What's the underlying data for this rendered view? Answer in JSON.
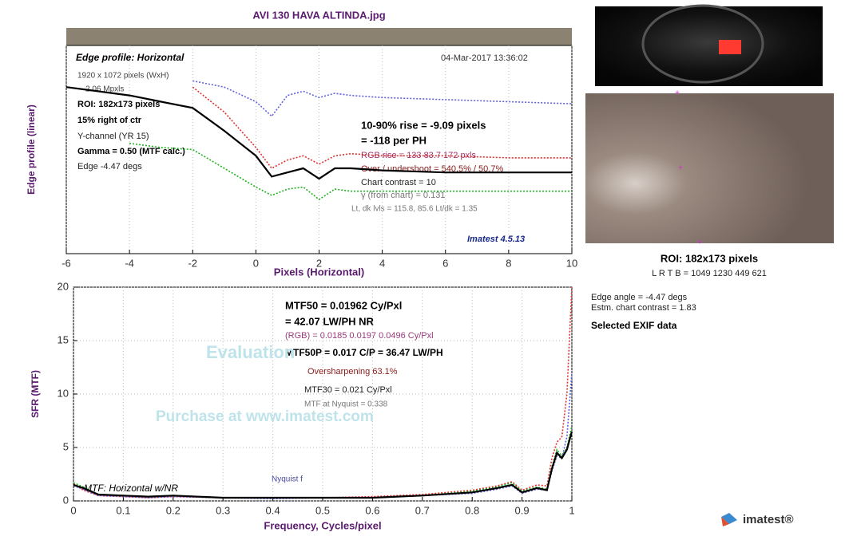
{
  "chart_data": [
    {
      "type": "line",
      "title": "AVI 130 HAVA ALTINDA.jpg",
      "x_label": "Pixels (Horizontal)",
      "y_label": "Edge profile (linear)",
      "x": [
        -6,
        -5,
        -4,
        -3,
        -2,
        -1,
        0,
        0.5,
        1,
        1.5,
        2,
        2.5,
        3,
        4,
        6,
        8,
        10
      ],
      "xlim": [
        -6,
        10
      ],
      "xticks": [
        -6,
        -4,
        -2,
        0,
        2,
        4,
        6,
        8,
        10
      ],
      "ylim": [
        0,
        1
      ],
      "grid": true,
      "series": [
        {
          "color": "#e03030",
          "style": "dotted",
          "values": [
            null,
            null,
            null,
            null,
            0.8,
            0.68,
            0.51,
            0.41,
            0.45,
            0.47,
            0.43,
            0.47,
            0.48,
            0.47,
            0.47,
            0.46,
            0.46
          ]
        },
        {
          "color": "#20b020",
          "style": "dotted",
          "values": [
            null,
            null,
            0.53,
            0.51,
            0.5,
            0.41,
            0.32,
            0.28,
            0.31,
            0.32,
            0.26,
            0.31,
            0.3,
            0.3,
            0.3,
            0.3,
            0.3
          ]
        },
        {
          "color": "#6060e0",
          "style": "dotted",
          "values": [
            null,
            null,
            null,
            null,
            0.83,
            0.8,
            0.73,
            0.66,
            0.76,
            0.78,
            0.75,
            0.77,
            0.76,
            0.75,
            0.74,
            0.73,
            0.72
          ]
        },
        {
          "color": "#000000",
          "style": "solid",
          "values": [
            0.8,
            0.78,
            0.76,
            0.73,
            0.7,
            0.59,
            0.47,
            0.37,
            0.39,
            0.41,
            0.36,
            0.41,
            0.41,
            0.4,
            0.39,
            0.39,
            0.39
          ]
        }
      ],
      "annotations": [
        {
          "text": "Edge profile: Horizontal",
          "color": "#000000"
        },
        {
          "text": "04-Mar-2017 13:36:02",
          "color": "#333333"
        },
        {
          "text": "1920 x 1072 pixels (WxH)",
          "color": "#444444"
        },
        {
          "text": "2.06 Mpxls",
          "color": "#444444"
        },
        {
          "text": "ROI:  182x173 pixels",
          "color": "#000000"
        },
        {
          "text": "15% right of ctr",
          "color": "#000000"
        },
        {
          "text": "Y-channel  (YR 15)",
          "color": "#222222"
        },
        {
          "text": "Gamma = 0.50 (MTF calc.)",
          "color": "#000000"
        },
        {
          "text": "Edge  -4.47 degs",
          "color": "#222222"
        },
        {
          "text": "10-90% rise = -9.09 pixels",
          "color": "#000000"
        },
        {
          "text": "=   -118 per PH",
          "color": "#000000"
        },
        {
          "text": "RGB rise =   133   83.7    172 pxls",
          "color": "#a0306a"
        },
        {
          "text": "Over / undershoot = 540.5% / 50.7%",
          "color": "#8b1a1a"
        },
        {
          "text": "Chart contrast = 10",
          "color": "#222222"
        },
        {
          "text": "γ (from chart) = 0.131",
          "color": "#777777"
        },
        {
          "text": "Lt, dk lvls =  115.8,   85.6   Lt/dk =   1.35",
          "color": "#777777"
        },
        {
          "text": "Imatest 4.5.13",
          "color": "#1a2a8b"
        }
      ]
    },
    {
      "type": "line",
      "x_label": "Frequency, Cycles/pixel",
      "y_label": "SFR (MTF)",
      "x": [
        0,
        0.02,
        0.05,
        0.1,
        0.15,
        0.2,
        0.3,
        0.4,
        0.5,
        0.6,
        0.7,
        0.8,
        0.85,
        0.88,
        0.9,
        0.93,
        0.95,
        0.96,
        0.97,
        0.98,
        0.99,
        1
      ],
      "xlim": [
        0,
        1
      ],
      "xticks": [
        0,
        0.1,
        0.2,
        0.3,
        0.4,
        0.5,
        0.6,
        0.7,
        0.8,
        0.9,
        1
      ],
      "ylim": [
        0,
        20
      ],
      "yticks": [
        0,
        5,
        10,
        15,
        20
      ],
      "grid": true,
      "series": [
        {
          "color": "#e03030",
          "style": "dotted",
          "values": [
            1.6,
            1.0,
            0.5,
            0.4,
            0.3,
            0.4,
            0.3,
            0.3,
            0.3,
            0.4,
            0.6,
            1.0,
            1.4,
            1.8,
            1.0,
            1.5,
            1.4,
            4.0,
            5.5,
            6.0,
            10.0,
            20.0
          ]
        },
        {
          "color": "#20b020",
          "style": "dotted",
          "values": [
            1.7,
            1.3,
            0.6,
            0.5,
            0.4,
            0.5,
            0.3,
            0.3,
            0.3,
            0.3,
            0.5,
            0.9,
            1.3,
            1.7,
            0.9,
            1.3,
            1.1,
            3.2,
            4.8,
            4.2,
            5.0,
            7.0
          ]
        },
        {
          "color": "#6060e0",
          "style": "dotted",
          "values": [
            1.4,
            1.1,
            0.5,
            0.4,
            0.3,
            0.4,
            0.3,
            0.2,
            0.3,
            0.3,
            0.5,
            0.7,
            1.1,
            1.4,
            0.7,
            1.1,
            1.0,
            2.8,
            4.2,
            4.0,
            6.0,
            12.0
          ]
        },
        {
          "color": "#000000",
          "style": "solid",
          "values": [
            1.5,
            1.2,
            0.6,
            0.5,
            0.4,
            0.5,
            0.3,
            0.3,
            0.3,
            0.3,
            0.5,
            0.8,
            1.2,
            1.5,
            0.8,
            1.2,
            1.0,
            3.0,
            4.5,
            4.0,
            4.8,
            6.5
          ]
        }
      ],
      "annotations": [
        {
          "text": "MTF50 = 0.01962 Cy/Pxl",
          "color": "#000000"
        },
        {
          "text": "= 42.07 LW/PH  NR",
          "color": "#000000"
        },
        {
          "text": "(RGB) = 0.0185  0.0197  0.0496 Cy/Pxl",
          "color": "#9a3a7a"
        },
        {
          "text": "MTF50P = 0.017 C/P = 36.47 LW/PH",
          "color": "#000000"
        },
        {
          "text": "Oversharpening 63.1%",
          "color": "#8b1a1a"
        },
        {
          "text": "MTF30 = 0.021 Cy/Pxl",
          "color": "#222222"
        },
        {
          "text": "MTF at Nyquist = 0.338",
          "color": "#777777"
        },
        {
          "text": "Evaluation",
          "color": "#bfe3ea"
        },
        {
          "text": "Purchase at www.imatest.com",
          "color": "#bfe3ea"
        },
        {
          "text": "Nyquist f",
          "color": "#4a4aa0"
        },
        {
          "text": "MTF: Horizontal w/NR",
          "color": "#000000"
        }
      ]
    }
  ],
  "side_panel": {
    "roi": "ROI:  182x173 pixels",
    "bounds": "L R  T B = 1049 1230  449 621",
    "edge_angle": "Edge angle = -4.47 degs",
    "contrast": "Estm. chart contrast = 1.83",
    "exif": "Selected EXIF data",
    "logo": "imatest®"
  }
}
